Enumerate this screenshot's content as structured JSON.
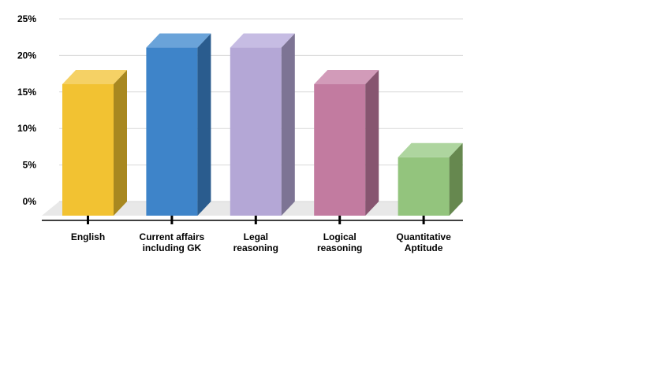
{
  "chart_data": {
    "type": "bar",
    "three_d": true,
    "title": "",
    "xlabel": "",
    "ylabel": "",
    "ylim": [
      0,
      25
    ],
    "y_tick_step": 5,
    "y_tick_labels": [
      "0%",
      "5%",
      "10%",
      "15%",
      "20%",
      "25%"
    ],
    "grid": true,
    "legend": "none",
    "categories": [
      [
        "English"
      ],
      [
        "Current affairs",
        "including GK"
      ],
      [
        "Legal",
        "reasoning"
      ],
      [
        "Logical",
        "reasoning"
      ],
      [
        "Quantitative",
        "Aptitude"
      ]
    ],
    "values": [
      18,
      23,
      23,
      18,
      8
    ],
    "unit": "%",
    "colors": {
      "front": [
        "#f2c232",
        "#3e84c9",
        "#b4a7d6",
        "#c27ba0",
        "#93c47d"
      ],
      "top": [
        "#f5d165",
        "#6aa3d9",
        "#c6bce3",
        "#d29bb9",
        "#aed59f"
      ],
      "side": [
        "#a88820",
        "#2a5c8e",
        "#7d7494",
        "#875570",
        "#66884f"
      ],
      "grid": "#d9d9d9",
      "floor": "#e8e8e8",
      "axis": "#000000"
    }
  }
}
